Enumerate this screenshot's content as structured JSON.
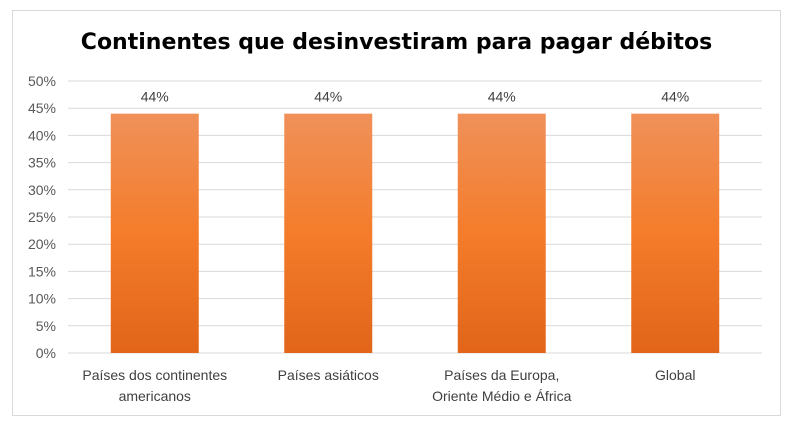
{
  "chart_data": {
    "type": "bar",
    "title": "Continentes que desinvestiram para pagar débitos",
    "categories": [
      [
        "Países dos continentes",
        "americanos"
      ],
      [
        "Países asiáticos"
      ],
      [
        "Países da Europa,",
        "Oriente Médio e África"
      ],
      [
        "Global"
      ]
    ],
    "values": [
      44,
      44,
      44,
      44
    ],
    "data_labels": [
      "44%",
      "44%",
      "44%",
      "44%"
    ],
    "ylim": [
      0,
      50
    ],
    "yticks": [
      0,
      5,
      10,
      15,
      20,
      25,
      30,
      35,
      40,
      45,
      50
    ],
    "ytick_labels": [
      "0%",
      "5%",
      "10%",
      "15%",
      "20%",
      "25%",
      "30%",
      "35%",
      "40%",
      "45%",
      "50%"
    ],
    "grid": true,
    "legend": "none",
    "bar_gradient": [
      "#f0915a",
      "#f47c2a",
      "#e2651a"
    ],
    "grid_color": "#d9d9d9"
  }
}
